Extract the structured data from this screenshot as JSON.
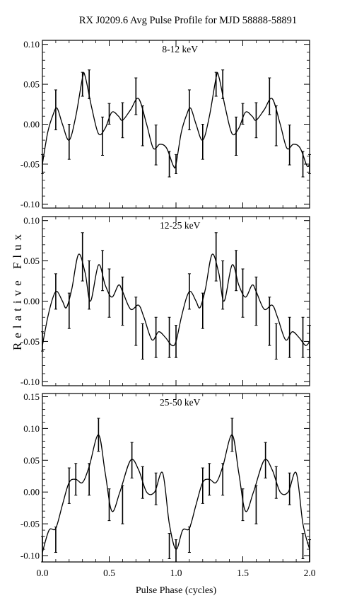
{
  "figure": {
    "title": "RX J0209.6 Avg Pulse Profile for MJD 58888-58891",
    "xlabel": "Pulse Phase (cycles)",
    "ylabel": "Relative Flux"
  },
  "chart_data": [
    {
      "type": "line",
      "panel_label": "8-12 keV",
      "xlim": [
        0,
        2
      ],
      "ylim": [
        -0.105,
        0.105
      ],
      "yticks": [
        -0.1,
        -0.05,
        0.0,
        0.05,
        0.1
      ],
      "ytick_labels": [
        "-0.10",
        "-0.05",
        "0.00",
        "0.05",
        "0.10"
      ],
      "x_ticks": [
        0,
        0.5,
        1.0,
        1.5,
        2.0
      ],
      "x_tick_labels": [],
      "curve": {
        "x": [
          0.0,
          0.04,
          0.08,
          0.11,
          0.15,
          0.2,
          0.25,
          0.3,
          0.32,
          0.37,
          0.42,
          0.47,
          0.52,
          0.57,
          0.6,
          0.66,
          0.72,
          0.78,
          0.83,
          0.88,
          0.93,
          0.98,
          1.0
        ],
        "y": [
          -0.05,
          -0.01,
          0.012,
          0.02,
          0.0,
          -0.02,
          0.01,
          0.058,
          0.06,
          0.02,
          -0.012,
          -0.005,
          0.015,
          0.01,
          0.005,
          0.018,
          0.032,
          0.0,
          -0.03,
          -0.025,
          -0.03,
          -0.052,
          -0.05
        ]
      },
      "errorbars": {
        "x": [
          0.0,
          0.1,
          0.2,
          0.3,
          0.35,
          0.45,
          0.5,
          0.6,
          0.7,
          0.75,
          0.85,
          0.95,
          1.0
        ],
        "y": [
          -0.05,
          0.018,
          -0.022,
          0.05,
          0.05,
          -0.015,
          0.013,
          0.005,
          0.035,
          -0.002,
          -0.026,
          -0.05,
          -0.05
        ],
        "err": [
          0.012,
          0.025,
          0.022,
          0.015,
          0.018,
          0.024,
          0.013,
          0.022,
          0.023,
          0.025,
          0.025,
          0.016,
          0.012
        ]
      }
    },
    {
      "type": "line",
      "panel_label": "12-25 keV",
      "xlim": [
        0,
        2
      ],
      "ylim": [
        -0.105,
        0.105
      ],
      "yticks": [
        -0.1,
        -0.05,
        0.0,
        0.05,
        0.1
      ],
      "ytick_labels": [
        "-0.10",
        "-0.05",
        "0.00",
        "0.05",
        "0.10"
      ],
      "x_ticks": [
        0,
        0.5,
        1.0,
        1.5,
        2.0
      ],
      "x_tick_labels": [],
      "curve": {
        "x": [
          0.0,
          0.04,
          0.08,
          0.11,
          0.15,
          0.18,
          0.22,
          0.27,
          0.32,
          0.36,
          0.42,
          0.47,
          0.52,
          0.57,
          0.6,
          0.66,
          0.72,
          0.76,
          0.82,
          0.87,
          0.92,
          0.97,
          1.0
        ],
        "y": [
          -0.055,
          -0.02,
          0.005,
          0.012,
          0.0,
          -0.008,
          0.015,
          0.058,
          0.035,
          0.0,
          0.045,
          0.02,
          0.005,
          0.02,
          0.012,
          -0.01,
          -0.005,
          -0.02,
          -0.048,
          -0.038,
          -0.045,
          -0.055,
          -0.05
        ]
      },
      "errorbars": {
        "x": [
          0.0,
          0.1,
          0.2,
          0.3,
          0.35,
          0.45,
          0.5,
          0.6,
          0.7,
          0.75,
          0.85,
          0.95,
          1.0
        ],
        "y": [
          -0.05,
          0.012,
          -0.012,
          0.055,
          0.02,
          0.038,
          0.01,
          0.0,
          -0.025,
          -0.05,
          -0.045,
          -0.045,
          -0.05
        ],
        "err": [
          0.012,
          0.022,
          0.022,
          0.03,
          0.03,
          0.025,
          0.03,
          0.03,
          0.03,
          0.022,
          0.025,
          0.025,
          0.02
        ]
      }
    },
    {
      "type": "line",
      "panel_label": "25-50 keV",
      "xlim": [
        0,
        2
      ],
      "ylim": [
        -0.11,
        0.155
      ],
      "yticks": [
        -0.1,
        -0.05,
        0.0,
        0.05,
        0.1,
        0.15
      ],
      "ytick_labels": [
        "-0.10",
        "-0.05",
        "0.00",
        "0.05",
        "0.10",
        "0.15"
      ],
      "x_ticks": [
        0,
        0.5,
        1.0,
        1.5,
        2.0
      ],
      "x_tick_labels": [
        "0.0",
        "0.5",
        "1.0",
        "1.5",
        "2.0"
      ],
      "curve": {
        "x": [
          0.0,
          0.05,
          0.1,
          0.15,
          0.2,
          0.25,
          0.3,
          0.35,
          0.42,
          0.47,
          0.52,
          0.58,
          0.66,
          0.72,
          0.78,
          0.84,
          0.9,
          0.95,
          1.0
        ],
        "y": [
          -0.095,
          -0.06,
          -0.057,
          -0.02,
          0.015,
          0.02,
          0.015,
          0.04,
          0.09,
          0.03,
          -0.03,
          0.0,
          0.05,
          0.035,
          0.0,
          0.0,
          0.03,
          -0.05,
          -0.09
        ]
      },
      "errorbars": {
        "x": [
          0.0,
          0.1,
          0.2,
          0.25,
          0.35,
          0.42,
          0.5,
          0.6,
          0.67,
          0.75,
          0.85,
          0.95,
          1.0
        ],
        "y": [
          -0.09,
          -0.075,
          0.01,
          0.02,
          0.02,
          0.09,
          -0.02,
          -0.02,
          0.05,
          0.015,
          0.005,
          -0.085,
          -0.095
        ],
        "err": [
          0.02,
          0.02,
          0.028,
          0.025,
          0.025,
          0.026,
          0.025,
          0.03,
          0.028,
          0.025,
          0.025,
          0.02,
          0.02
        ]
      }
    }
  ]
}
